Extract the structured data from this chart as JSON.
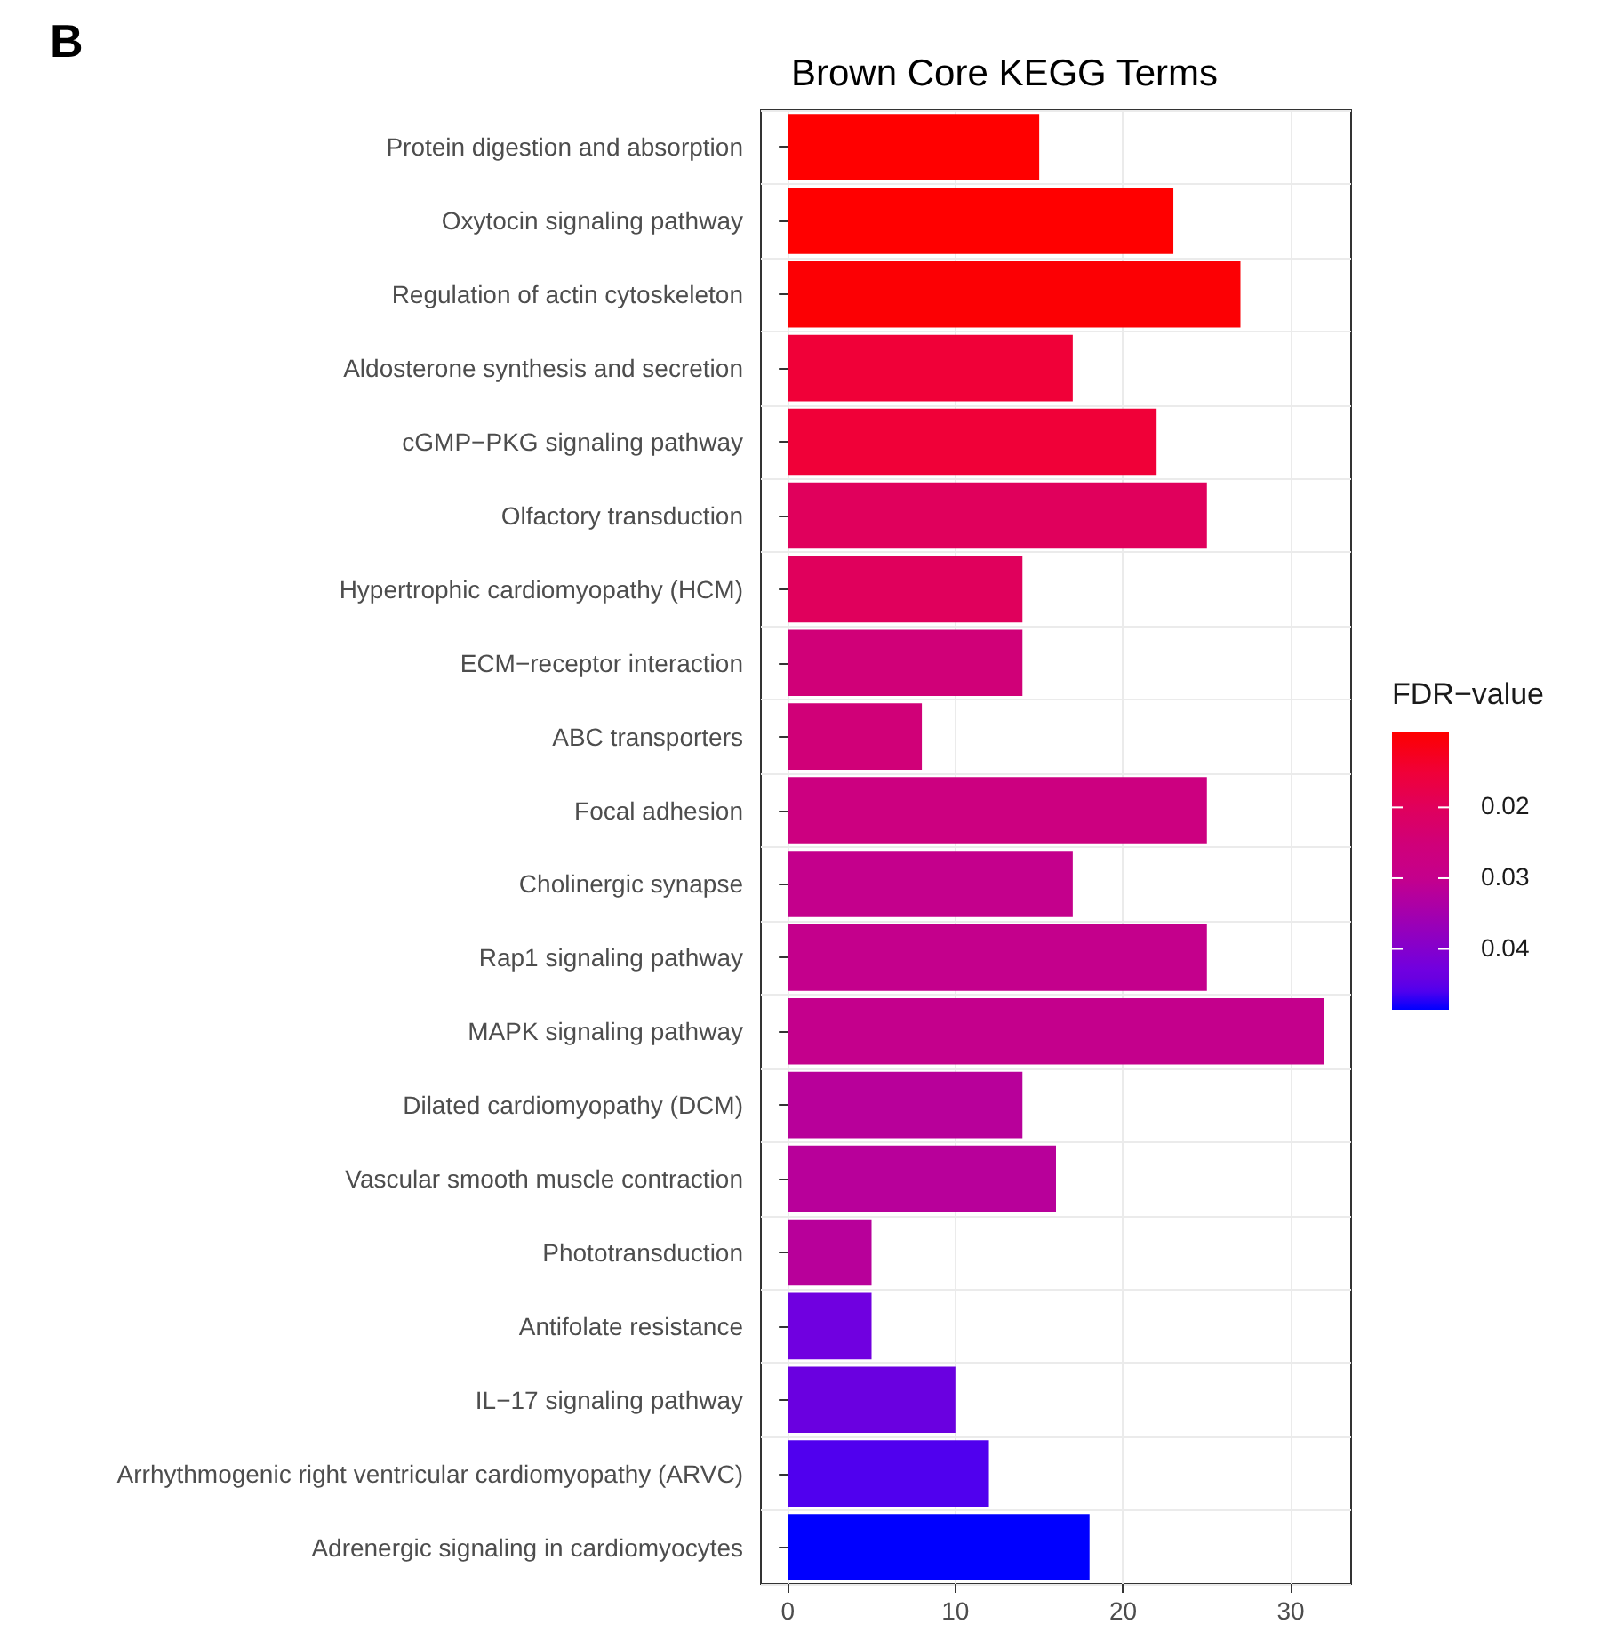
{
  "chart_data": {
    "type": "bar",
    "orientation": "horizontal",
    "title": "Brown Core KEGG Terms",
    "clabel": "FDR−value",
    "annotations": [
      "B"
    ],
    "categories": [
      "Protein digestion and absorption",
      "Oxytocin signaling pathway",
      "Regulation of actin cytoskeleton",
      "Aldosterone synthesis and secretion",
      "cGMP−PKG signaling pathway",
      "Olfactory transduction",
      "Hypertrophic cardiomyopathy (HCM)",
      "ECM−receptor interaction",
      "ABC transporters",
      "Focal adhesion",
      "Cholinergic synapse",
      "Rap1 signaling pathway",
      "MAPK signaling pathway",
      "Dilated cardiomyopathy (DCM)",
      "Vascular smooth muscle contraction",
      "Phototransduction",
      "Antifolate resistance",
      "IL−17 signaling pathway",
      "Arrhythmogenic right ventricular cardiomyopathy (ARVC)",
      "Adrenergic signaling in cardiomyocytes"
    ],
    "values": [
      15,
      23,
      27,
      17,
      22,
      25,
      14,
      14,
      8,
      25,
      17,
      25,
      32,
      14,
      16,
      5,
      5,
      10,
      12,
      18
    ],
    "cvalues": [
      0.0094,
      0.0096,
      0.0098,
      0.015,
      0.015,
      0.02,
      0.02,
      0.025,
      0.025,
      0.027,
      0.03,
      0.03,
      0.03,
      0.032,
      0.032,
      0.032,
      0.043,
      0.044,
      0.046,
      0.0486
    ],
    "colors": [
      "#ff0000",
      "#ff0000",
      "#fc0004",
      "#f00038",
      "#f00038",
      "#e0005c",
      "#e0005c",
      "#d00078",
      "#d00078",
      "#cc0080",
      "#c4008c",
      "#c4008c",
      "#c4008c",
      "#b8009a",
      "#b8009a",
      "#b8009a",
      "#7000e0",
      "#6a00e0",
      "#5000ee",
      "#0000ff"
    ],
    "clim": [
      0.0094,
      0.0486
    ],
    "cticks": [
      0.02,
      0.03,
      0.04
    ],
    "xlim": [
      -1.6,
      33.6
    ],
    "xticks": [
      0,
      10,
      20,
      30
    ],
    "grid": true
  }
}
